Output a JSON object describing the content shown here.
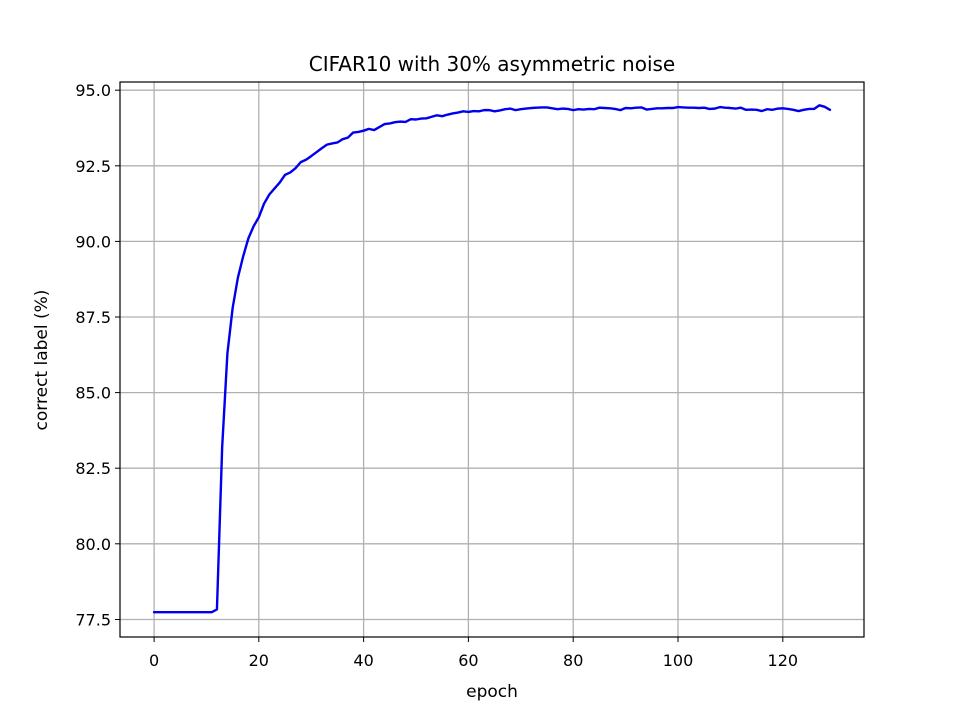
{
  "chart_data": {
    "type": "line",
    "title": "CIFAR10 with 30% asymmetric noise",
    "xlabel": "epoch",
    "ylabel": "correct label (%)",
    "xlim": [
      -6.5,
      135.5
    ],
    "ylim": [
      76.92,
      95.27
    ],
    "xticks": [
      0,
      20,
      40,
      60,
      80,
      100,
      120
    ],
    "xtick_labels": [
      "0",
      "20",
      "40",
      "60",
      "80",
      "100",
      "120"
    ],
    "yticks": [
      77.5,
      80.0,
      82.5,
      85.0,
      87.5,
      90.0,
      92.5,
      95.0
    ],
    "ytick_labels": [
      "77.5",
      "80.0",
      "82.5",
      "85.0",
      "87.5",
      "90.0",
      "92.5",
      "95.0"
    ],
    "grid": true,
    "series": [
      {
        "color": "#0000ee",
        "x": [
          0,
          1,
          2,
          3,
          4,
          5,
          6,
          7,
          8,
          9,
          10,
          11,
          12,
          13,
          14,
          15,
          16,
          17,
          18,
          19,
          20,
          21,
          22,
          23,
          24,
          25,
          26,
          27,
          28,
          29,
          30,
          31,
          32,
          33,
          34,
          35,
          36,
          37,
          38,
          39,
          40,
          41,
          42,
          43,
          44,
          45,
          46,
          47,
          48,
          49,
          50,
          51,
          52,
          53,
          54,
          55,
          56,
          57,
          58,
          59,
          60,
          61,
          62,
          63,
          64,
          65,
          66,
          67,
          68,
          69,
          70,
          71,
          72,
          73,
          74,
          75,
          76,
          77,
          78,
          79,
          80,
          81,
          82,
          83,
          84,
          85,
          86,
          87,
          88,
          89,
          90,
          91,
          92,
          93,
          94,
          95,
          96,
          97,
          98,
          99,
          100,
          101,
          102,
          103,
          104,
          105,
          106,
          107,
          108,
          109,
          110,
          111,
          112,
          113,
          114,
          115,
          116,
          117,
          118,
          119,
          120,
          121,
          122,
          123,
          124,
          125,
          126,
          127,
          128,
          129
        ],
        "y": [
          77.74,
          77.74,
          77.74,
          77.74,
          77.74,
          77.74,
          77.74,
          77.74,
          77.74,
          77.74,
          77.74,
          77.74,
          77.83,
          83.2,
          86.3,
          87.8,
          88.8,
          89.5,
          90.1,
          90.5,
          90.8,
          91.25,
          91.55,
          91.75,
          91.95,
          92.2,
          92.28,
          92.42,
          92.62,
          92.7,
          92.82,
          92.95,
          93.08,
          93.2,
          93.24,
          93.27,
          93.38,
          93.43,
          93.6,
          93.62,
          93.66,
          93.72,
          93.68,
          93.78,
          93.88,
          93.9,
          93.94,
          93.96,
          93.95,
          94.04,
          94.03,
          94.06,
          94.07,
          94.12,
          94.17,
          94.14,
          94.19,
          94.23,
          94.26,
          94.3,
          94.28,
          94.31,
          94.3,
          94.34,
          94.34,
          94.3,
          94.33,
          94.37,
          94.39,
          94.34,
          94.37,
          94.39,
          94.41,
          94.42,
          94.43,
          94.43,
          94.4,
          94.37,
          94.39,
          94.38,
          94.34,
          94.37,
          94.36,
          94.38,
          94.37,
          94.42,
          94.41,
          94.4,
          94.38,
          94.34,
          94.41,
          94.4,
          94.42,
          94.43,
          94.36,
          94.38,
          94.4,
          94.4,
          94.41,
          94.41,
          94.44,
          94.43,
          94.42,
          94.42,
          94.41,
          94.42,
          94.38,
          94.39,
          94.44,
          94.42,
          94.41,
          94.39,
          94.42,
          94.35,
          94.36,
          94.35,
          94.31,
          94.37,
          94.35,
          94.39,
          94.4,
          94.38,
          94.35,
          94.31,
          94.35,
          94.38,
          94.38,
          94.5,
          94.45,
          94.35
        ]
      }
    ]
  }
}
